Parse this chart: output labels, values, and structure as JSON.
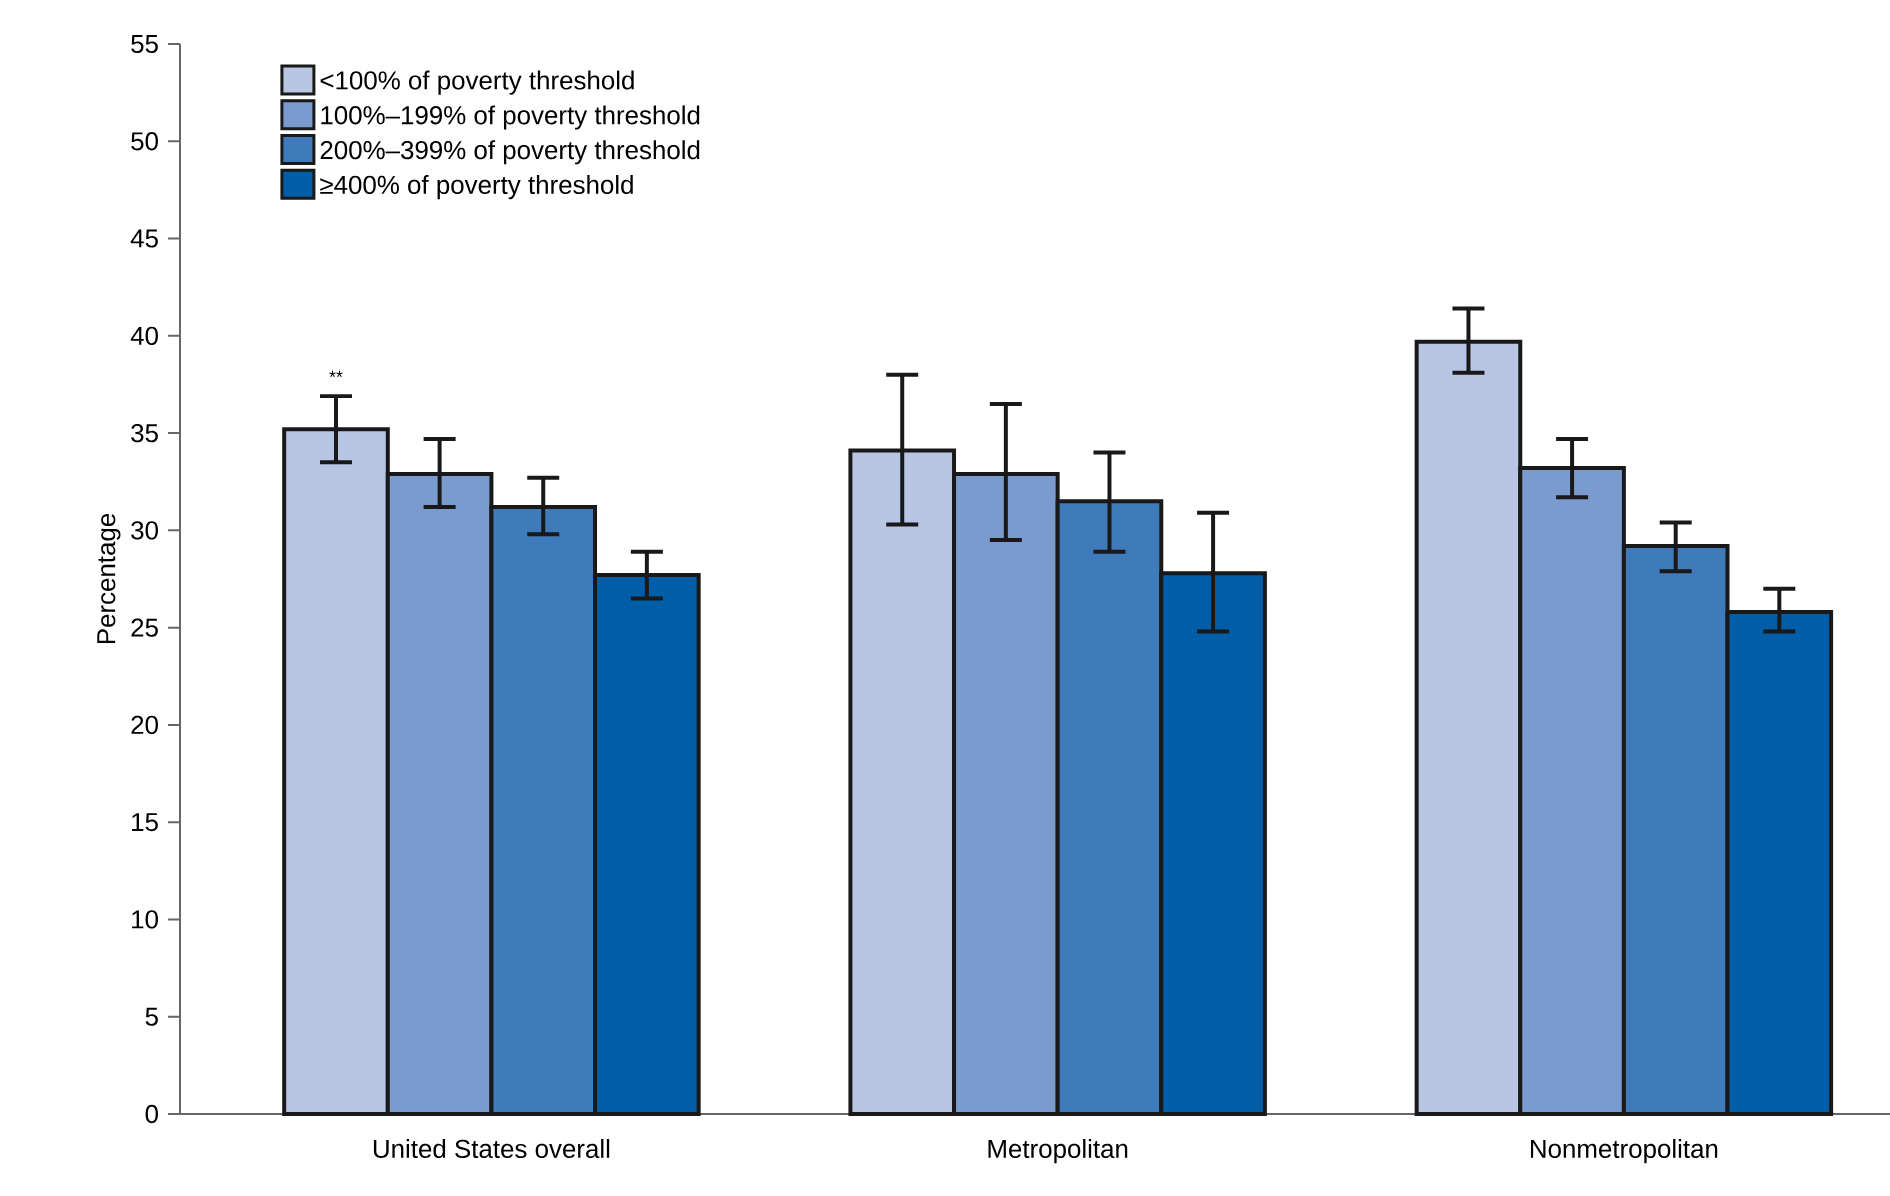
{
  "chart_data": {
    "type": "bar",
    "ylabel": "Percentage",
    "categories": [
      "United States overall",
      "Metropolitan",
      "Nonmetropolitan"
    ],
    "series": [
      {
        "name": "<100% of poverty threshold",
        "color": "#b8c6e4",
        "values": [
          35.2,
          34.1,
          39.7
        ],
        "errors": [
          [
            33.5,
            36.9
          ],
          [
            30.3,
            38.0
          ],
          [
            38.1,
            41.4
          ]
        ]
      },
      {
        "name": "100%–199% of poverty threshold",
        "color": "#7b9bcf",
        "values": [
          32.9,
          32.9,
          33.2
        ],
        "errors": [
          [
            31.2,
            34.7
          ],
          [
            29.5,
            36.5
          ],
          [
            31.7,
            34.7
          ]
        ]
      },
      {
        "name": "200%–399% of poverty threshold",
        "color": "#3f7abb",
        "values": [
          31.2,
          31.5,
          29.2
        ],
        "errors": [
          [
            29.8,
            32.7
          ],
          [
            28.9,
            34.0
          ],
          [
            27.9,
            30.4
          ]
        ]
      },
      {
        "name": "≥400% of poverty threshold",
        "color": "#005ea8",
        "values": [
          27.7,
          27.8,
          25.8
        ],
        "errors": [
          [
            26.5,
            28.9
          ],
          [
            24.8,
            30.9
          ],
          [
            24.8,
            27.0
          ]
        ]
      }
    ],
    "ylim": [
      0,
      55
    ],
    "yticks": [
      0,
      5,
      10,
      15,
      20,
      25,
      30,
      35,
      40,
      45,
      50,
      55
    ],
    "grid": false,
    "legend": "top left",
    "annotations": [
      "**"
    ]
  }
}
